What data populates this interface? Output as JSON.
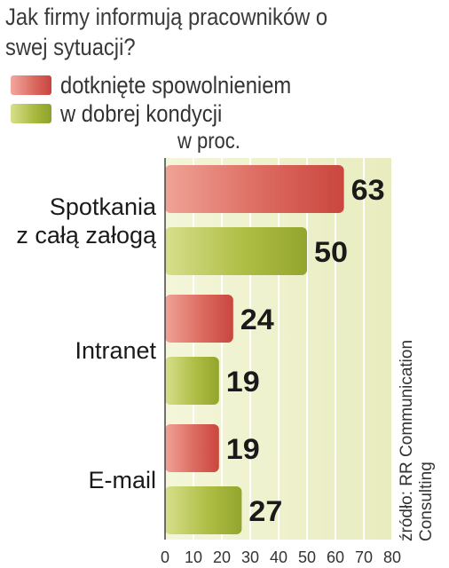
{
  "chart_data": {
    "type": "bar",
    "orientation": "horizontal",
    "title": "Jak firmy informują pracowników o swej sytuacji?",
    "unit": "w proc.",
    "categories": [
      {
        "lines": [
          "Spotkania",
          "z całą załogą"
        ]
      },
      {
        "lines": [
          "Intranet"
        ]
      },
      {
        "lines": [
          "E-mail"
        ]
      }
    ],
    "series": [
      {
        "name": "dotknięte  spowolnieniem",
        "values": [
          63,
          24,
          19
        ],
        "color": "#d9675e"
      },
      {
        "name": "w dobrej kondycji",
        "values": [
          50,
          19,
          27
        ],
        "color": "#a8b83e"
      }
    ],
    "xlim": [
      0,
      80
    ],
    "ticks": [
      "0",
      "10",
      "20",
      "30",
      "40",
      "50",
      "60",
      "70",
      "80"
    ],
    "source": "źródło: RR Communication Consulting",
    "legend": "top-left",
    "grid": true
  }
}
